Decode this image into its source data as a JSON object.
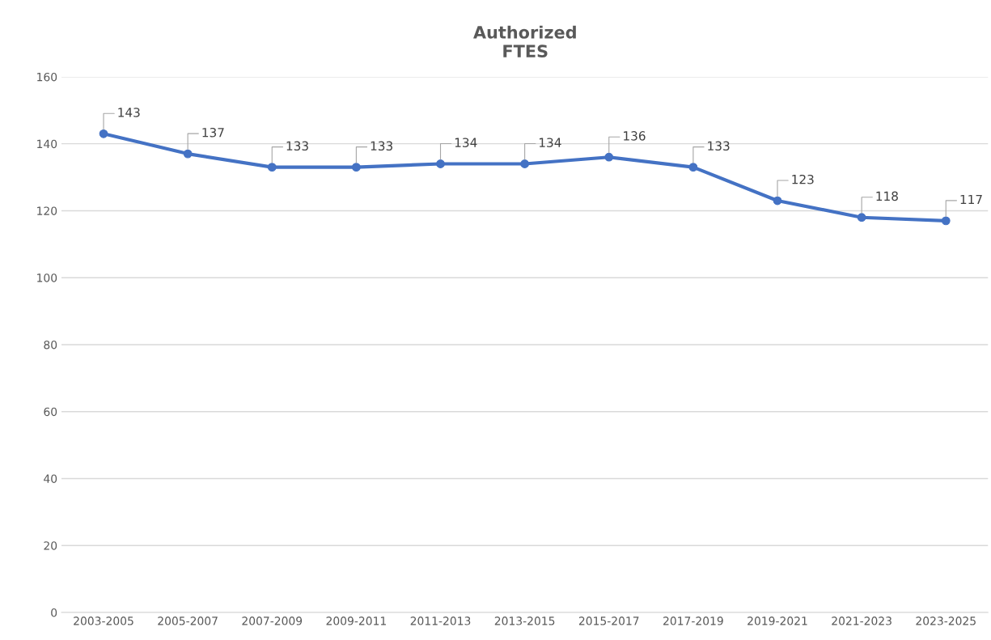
{
  "chart_data": {
    "type": "line",
    "title": "Authorized\nFTES",
    "categories": [
      "2003-2005",
      "2005-2007",
      "2007-2009",
      "2009-2011",
      "2011-2013",
      "2013-2015",
      "2015-2017",
      "2017-2019",
      "2019-2021",
      "2021-2023",
      "2023-2025"
    ],
    "series": [
      {
        "color": "#4472c4",
        "values": [
          143,
          137,
          133,
          133,
          134,
          134,
          136,
          133,
          123,
          118,
          117
        ]
      }
    ],
    "ylim": [
      0,
      160
    ],
    "yticks": [
      0,
      20,
      40,
      60,
      80,
      100,
      120,
      140,
      160
    ],
    "grid": "y",
    "marker": "circle",
    "line_style": "solid",
    "data_labels": true,
    "legend": false
  }
}
